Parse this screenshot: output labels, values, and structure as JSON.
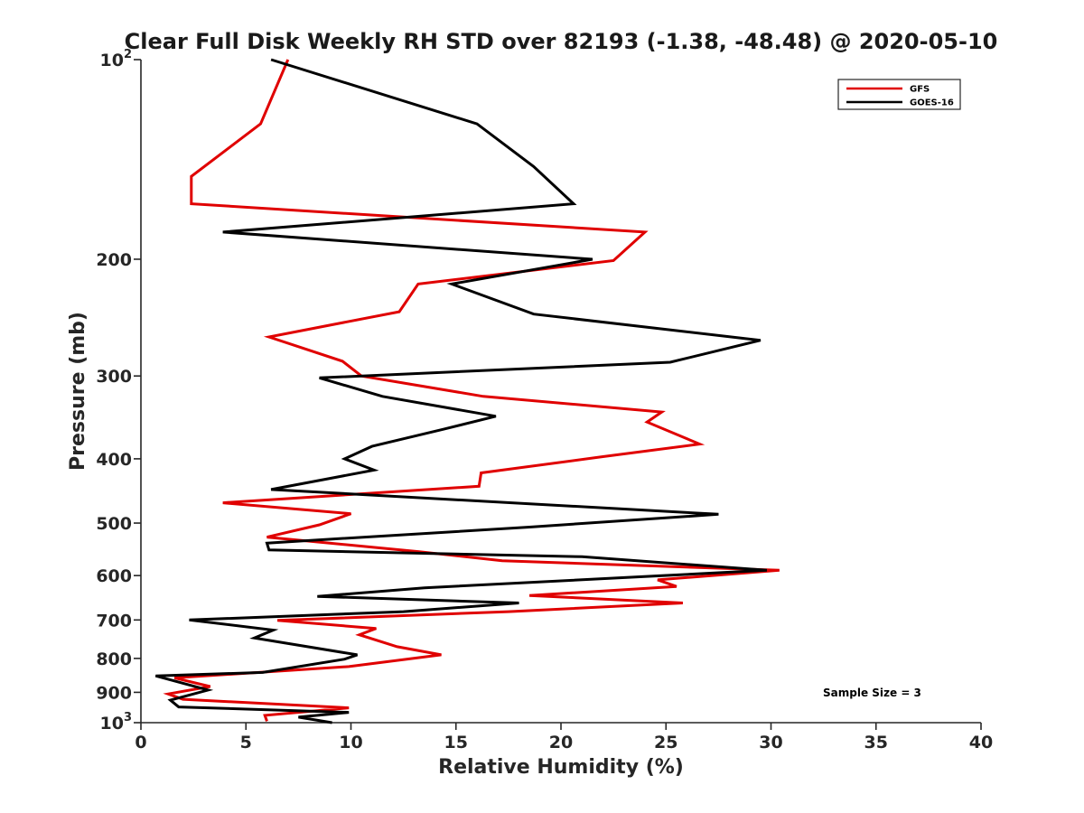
{
  "chart_data": {
    "type": "line",
    "title": "Clear Full Disk Weekly RH STD over 82193 (-1.38, -48.48) @ 2020-05-10",
    "xlabel": "Relative Humidity (%)",
    "ylabel": "Pressure (mb)",
    "xlim": [
      0,
      40
    ],
    "ylim": [
      100,
      1000
    ],
    "yscale": "log",
    "y_reversed": true,
    "grid": false,
    "legend_position": "top-right",
    "x_ticks": [
      0,
      5,
      10,
      15,
      20,
      25,
      30,
      35,
      40
    ],
    "y_ticks": [
      {
        "value": 100,
        "base": "10",
        "exp": "2"
      },
      {
        "value": 200,
        "label": "200"
      },
      {
        "value": 300,
        "label": "300"
      },
      {
        "value": 400,
        "label": "400"
      },
      {
        "value": 500,
        "label": "500"
      },
      {
        "value": 600,
        "label": "600"
      },
      {
        "value": 700,
        "label": "700"
      },
      {
        "value": 800,
        "label": "800"
      },
      {
        "value": 900,
        "label": "900"
      },
      {
        "value": 1000,
        "base": "10",
        "exp": "3"
      }
    ],
    "annotation": "Sample Size = 3",
    "series": [
      {
        "name": "GFS",
        "color": "#e00000",
        "points": [
          [
            7.0,
            100
          ],
          [
            5.7,
            125
          ],
          [
            2.4,
            150
          ],
          [
            2.4,
            165
          ],
          [
            24.0,
            182
          ],
          [
            22.5,
            201
          ],
          [
            13.2,
            218
          ],
          [
            12.3,
            240
          ],
          [
            6.1,
            262
          ],
          [
            9.6,
            285
          ],
          [
            10.5,
            300
          ],
          [
            16.3,
            322
          ],
          [
            24.8,
            340
          ],
          [
            24.1,
            352
          ],
          [
            26.6,
            380
          ],
          [
            22.0,
            397
          ],
          [
            16.2,
            420
          ],
          [
            16.1,
            440
          ],
          [
            3.9,
            466
          ],
          [
            10.0,
            484
          ],
          [
            8.5,
            503
          ],
          [
            6.0,
            525
          ],
          [
            13.2,
            552
          ],
          [
            17.2,
            570
          ],
          [
            30.4,
            589
          ],
          [
            24.6,
            609
          ],
          [
            25.5,
            623
          ],
          [
            18.5,
            643
          ],
          [
            25.8,
            660
          ],
          [
            17.5,
            680
          ],
          [
            6.5,
            701
          ],
          [
            11.2,
            721
          ],
          [
            10.4,
            737
          ],
          [
            12.2,
            768
          ],
          [
            14.3,
            790
          ],
          [
            9.9,
            823
          ],
          [
            1.6,
            856
          ],
          [
            3.3,
            882
          ],
          [
            1.3,
            905
          ],
          [
            2.0,
            922
          ],
          [
            9.9,
            950
          ],
          [
            5.9,
            975
          ],
          [
            6.0,
            995
          ]
        ]
      },
      {
        "name": "GOES-16",
        "color": "#000000",
        "points": [
          [
            6.2,
            100
          ],
          [
            16.0,
            125
          ],
          [
            18.7,
            145
          ],
          [
            20.6,
            165
          ],
          [
            3.9,
            182
          ],
          [
            21.5,
            200
          ],
          [
            14.8,
            218
          ],
          [
            18.7,
            242
          ],
          [
            29.5,
            265
          ],
          [
            25.2,
            286
          ],
          [
            8.5,
            302
          ],
          [
            11.5,
            322
          ],
          [
            16.9,
            345
          ],
          [
            14.4,
            361
          ],
          [
            11.0,
            383
          ],
          [
            9.7,
            400
          ],
          [
            11.1,
            416
          ],
          [
            6.2,
            445
          ],
          [
            27.5,
            485
          ],
          [
            18.5,
            507
          ],
          [
            6.0,
            536
          ],
          [
            6.1,
            549
          ],
          [
            21.0,
            562
          ],
          [
            29.8,
            589
          ],
          [
            13.5,
            626
          ],
          [
            8.4,
            645
          ],
          [
            18.0,
            660
          ],
          [
            12.5,
            680
          ],
          [
            2.3,
            700
          ],
          [
            6.3,
            725
          ],
          [
            5.4,
            745
          ],
          [
            10.3,
            790
          ],
          [
            9.7,
            802
          ],
          [
            5.8,
            840
          ],
          [
            0.7,
            850
          ],
          [
            3.2,
            893
          ],
          [
            1.4,
            925
          ],
          [
            1.8,
            947
          ],
          [
            9.9,
            965
          ],
          [
            7.5,
            981
          ],
          [
            9.1,
            1000
          ]
        ]
      }
    ]
  }
}
